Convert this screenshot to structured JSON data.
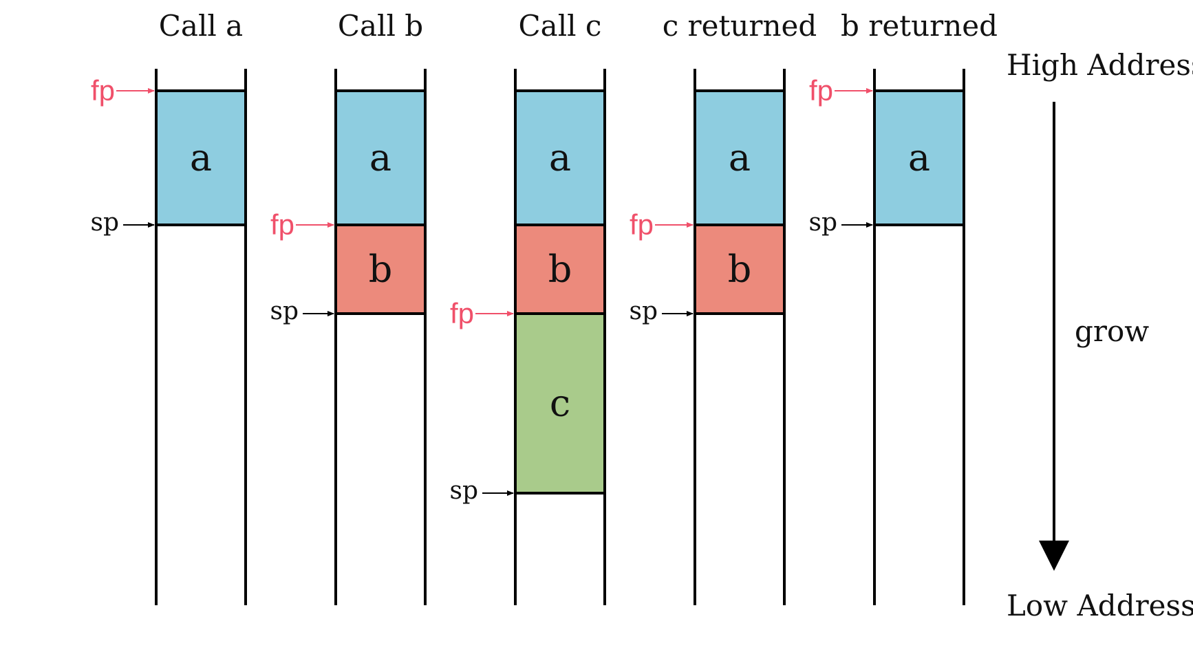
{
  "colors": {
    "frame_a": "#8ecde0",
    "frame_b": "#ec8a7c",
    "frame_c": "#a9cb8b",
    "fp": "#f0506a",
    "line": "#000000"
  },
  "axis": {
    "high_label": "High Address",
    "low_label": "Low Address",
    "grow_label": "grow"
  },
  "stages": [
    {
      "title": "Call a",
      "frames": [
        {
          "label": "a",
          "color_key": "frame_a"
        }
      ],
      "fp": {
        "label": "fp",
        "at": 0
      },
      "sp": {
        "label": "sp",
        "at": 1
      }
    },
    {
      "title": "Call b",
      "frames": [
        {
          "label": "a",
          "color_key": "frame_a"
        },
        {
          "label": "b",
          "color_key": "frame_b"
        }
      ],
      "fp": {
        "label": "fp",
        "at": 1
      },
      "sp": {
        "label": "sp",
        "at": 2
      }
    },
    {
      "title": "Call c",
      "frames": [
        {
          "label": "a",
          "color_key": "frame_a"
        },
        {
          "label": "b",
          "color_key": "frame_b"
        },
        {
          "label": "c",
          "color_key": "frame_c"
        }
      ],
      "fp": {
        "label": "fp",
        "at": 2
      },
      "sp": {
        "label": "sp",
        "at": 3
      }
    },
    {
      "title": "c returned",
      "frames": [
        {
          "label": "a",
          "color_key": "frame_a"
        },
        {
          "label": "b",
          "color_key": "frame_b"
        }
      ],
      "fp": {
        "label": "fp",
        "at": 1
      },
      "sp": {
        "label": "sp",
        "at": 2
      }
    },
    {
      "title": "b returned",
      "frames": [
        {
          "label": "a",
          "color_key": "frame_a"
        }
      ],
      "fp": {
        "label": "fp",
        "at": 0
      },
      "sp": {
        "label": "sp",
        "at": 1
      }
    }
  ]
}
